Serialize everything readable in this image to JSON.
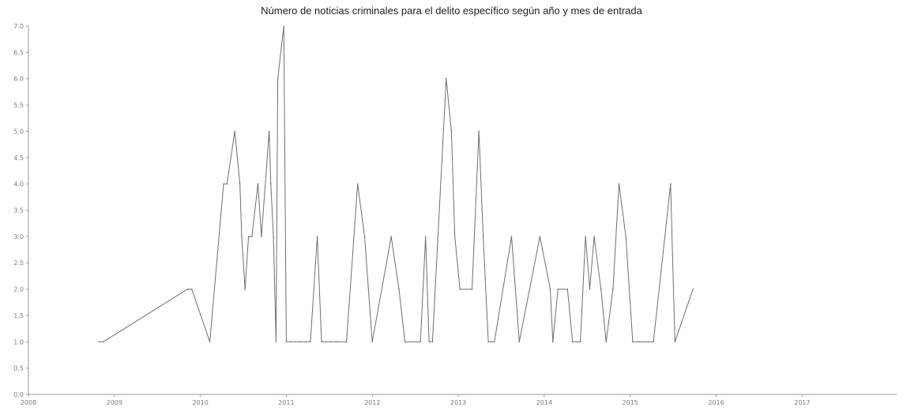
{
  "chart_data": {
    "type": "line",
    "title": "Número de noticias criminales para el delito específico según año y mes de entrada",
    "xlabel": "",
    "ylabel": "",
    "x_ticks": [
      "2008",
      "2009",
      "2010",
      "2011",
      "2012",
      "2013",
      "2014",
      "2015",
      "2016",
      "2017"
    ],
    "y_ticks": [
      "0.0",
      "0.5",
      "1.0",
      "1.5",
      "2.0",
      "2.5",
      "3.0",
      "3.5",
      "4.0",
      "4.5",
      "5.0",
      "5.5",
      "6.0",
      "6.5",
      "7.0"
    ],
    "xlim": [
      2008.0,
      2018.1
    ],
    "ylim": [
      0,
      7
    ],
    "grid": false,
    "series": [
      {
        "color": "#6f6f6f",
        "x": [
          2008.82,
          2008.87,
          2009.85,
          2009.9,
          2010.11,
          2010.27,
          2010.31,
          2010.4,
          2010.46,
          2010.48,
          2010.52,
          2010.56,
          2010.6,
          2010.67,
          2010.71,
          2010.8,
          2010.82,
          2010.85,
          2010.88,
          2010.9,
          2010.97,
          2011.0,
          2011.05,
          2011.15,
          2011.28,
          2011.36,
          2011.41,
          2011.52,
          2011.58,
          2011.7,
          2011.83,
          2011.91,
          2012.0,
          2012.22,
          2012.31,
          2012.38,
          2012.56,
          2012.62,
          2012.66,
          2012.7,
          2012.86,
          2012.92,
          2012.96,
          2013.02,
          2013.16,
          2013.24,
          2013.29,
          2013.35,
          2013.38,
          2013.42,
          2013.62,
          2013.71,
          2013.95,
          2014.07,
          2014.1,
          2014.16,
          2014.27,
          2014.33,
          2014.42,
          2014.48,
          2014.53,
          2014.58,
          2014.66,
          2014.72,
          2014.8,
          2014.87,
          2014.95,
          2015.03,
          2015.1,
          2015.21,
          2015.27,
          2015.47,
          2015.52,
          2015.73
        ],
        "values": [
          1,
          1,
          2,
          2,
          1,
          4,
          4,
          5,
          4,
          3,
          2,
          3,
          3,
          4,
          3,
          5,
          4,
          3,
          1,
          6,
          7,
          1,
          1,
          1,
          1,
          3,
          1,
          1,
          1,
          1,
          4,
          3,
          1,
          3,
          2,
          1,
          1,
          3,
          1,
          1,
          6,
          5,
          3,
          2,
          2,
          5,
          3,
          1,
          1,
          1,
          3,
          1,
          3,
          2,
          1,
          2,
          2,
          1,
          1,
          3,
          2,
          3,
          2,
          1,
          2,
          4,
          3,
          1,
          1,
          1,
          1,
          4,
          1,
          2
        ]
      }
    ]
  }
}
